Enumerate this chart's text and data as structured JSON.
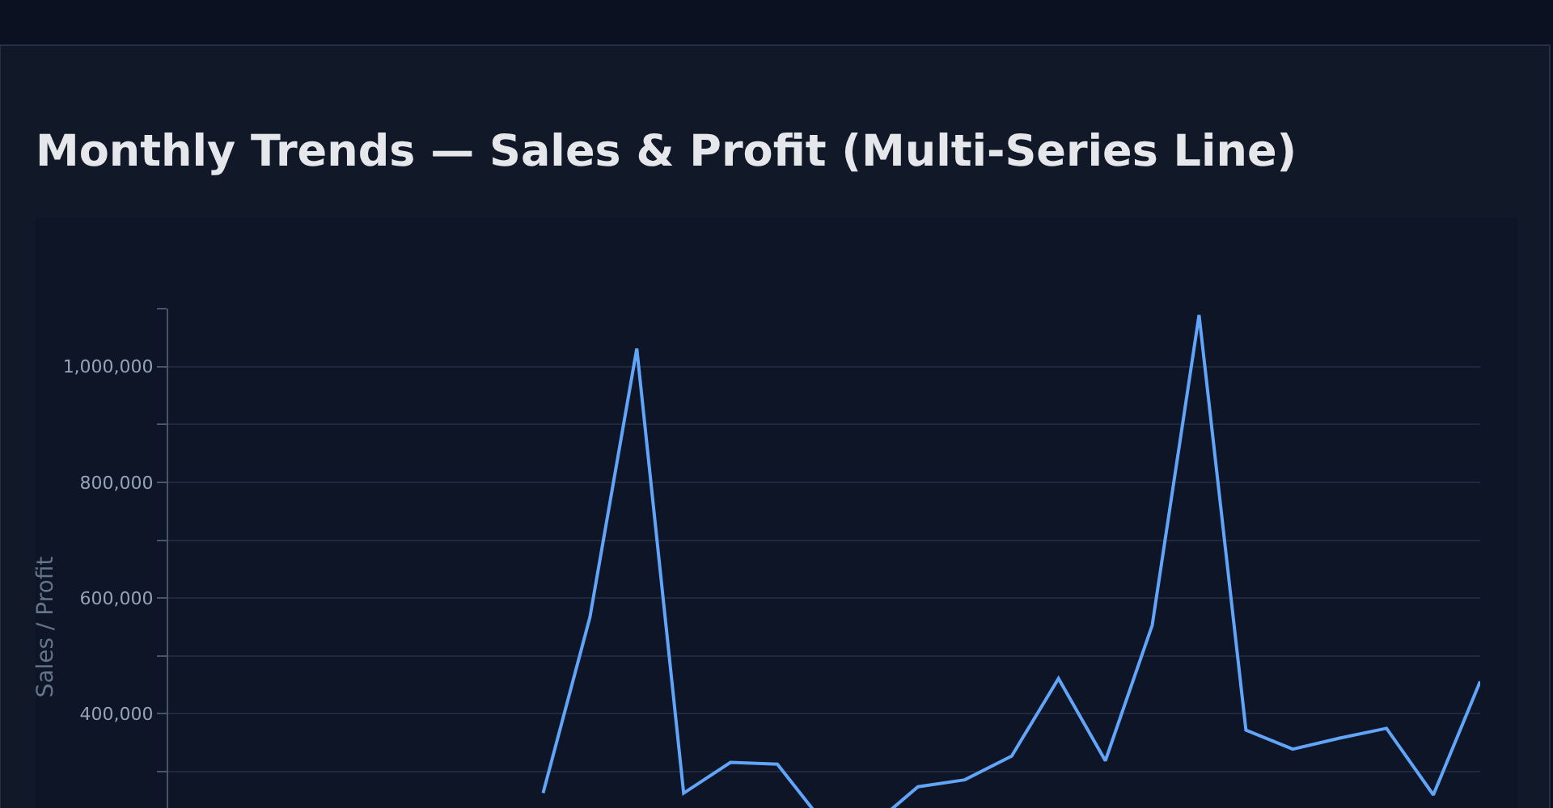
{
  "chart_data": {
    "type": "line",
    "title": "Monthly Trends — Sales & Profit (Multi-Series Line)",
    "ylabel": "Sales / Profit",
    "categories": [
      null,
      null,
      null,
      null,
      null,
      null,
      null,
      null,
      null,
      null,
      null,
      null,
      null,
      null,
      null,
      null,
      null,
      null,
      null,
      null,
      null,
      null,
      null,
      null,
      null,
      null,
      null,
      null,
      null
    ],
    "series": [
      {
        "color": "#60a5fa",
        "values": [
          null,
          null,
          null,
          null,
          null,
          null,
          null,
          null,
          263000,
          567000,
          1031000,
          263000,
          316000,
          313000,
          210000,
          205000,
          274000,
          286000,
          327000,
          461000,
          319000,
          553000,
          1089000,
          372000,
          339000,
          358000,
          375000,
          260000,
          456000
        ]
      }
    ],
    "ylim": [
      0,
      1100000
    ],
    "yticks": [
      {
        "value": 300000,
        "label": null
      },
      {
        "value": 400000,
        "label": "400,000"
      },
      {
        "value": 500000,
        "label": null
      },
      {
        "value": 600000,
        "label": "600,000"
      },
      {
        "value": 700000,
        "label": null
      },
      {
        "value": 800000,
        "label": "800,000"
      },
      {
        "value": 900000,
        "label": null
      },
      {
        "value": 1000000,
        "label": "1,000,000"
      },
      {
        "value": 1100000,
        "label": null
      }
    ],
    "grid": "y",
    "marker": "none",
    "line_style": "solid",
    "tick_labels": "y"
  }
}
